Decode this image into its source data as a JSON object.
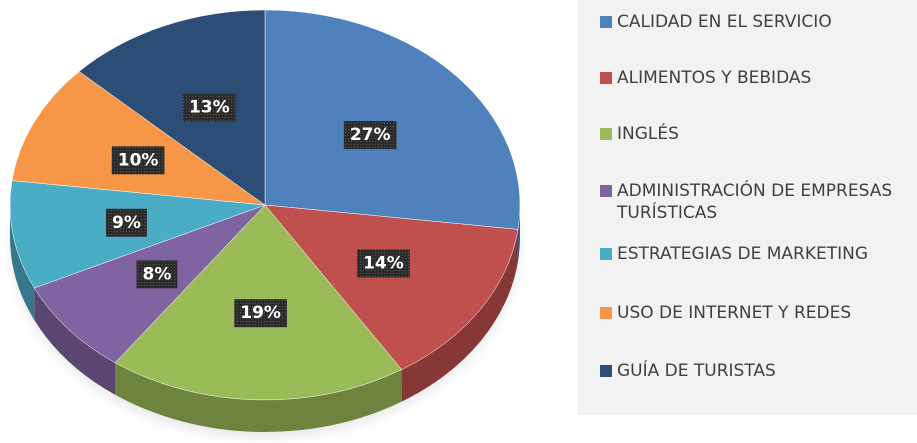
{
  "chart_data": {
    "type": "pie",
    "categories": [
      "CALIDAD EN EL SERVICIO",
      "ALIMENTOS Y BEBIDAS",
      "INGLÉS",
      "ADMINISTRACIÓN DE EMPRESAS TURÍSTICAS",
      "ESTRATEGIAS DE MARKETING",
      "USO DE INTERNET Y REDES",
      "GUÍA DE TURISTAS"
    ],
    "values": [
      27,
      14,
      19,
      8,
      9,
      10,
      13
    ],
    "value_labels": [
      "27%",
      "14%",
      "19%",
      "8%",
      "9%",
      "10%",
      "13%"
    ],
    "colors": [
      "#4f81bd",
      "#c0504d",
      "#9bbb59",
      "#8064a2",
      "#4bacc6",
      "#f79646",
      "#2c4d75"
    ],
    "legend": "right"
  }
}
